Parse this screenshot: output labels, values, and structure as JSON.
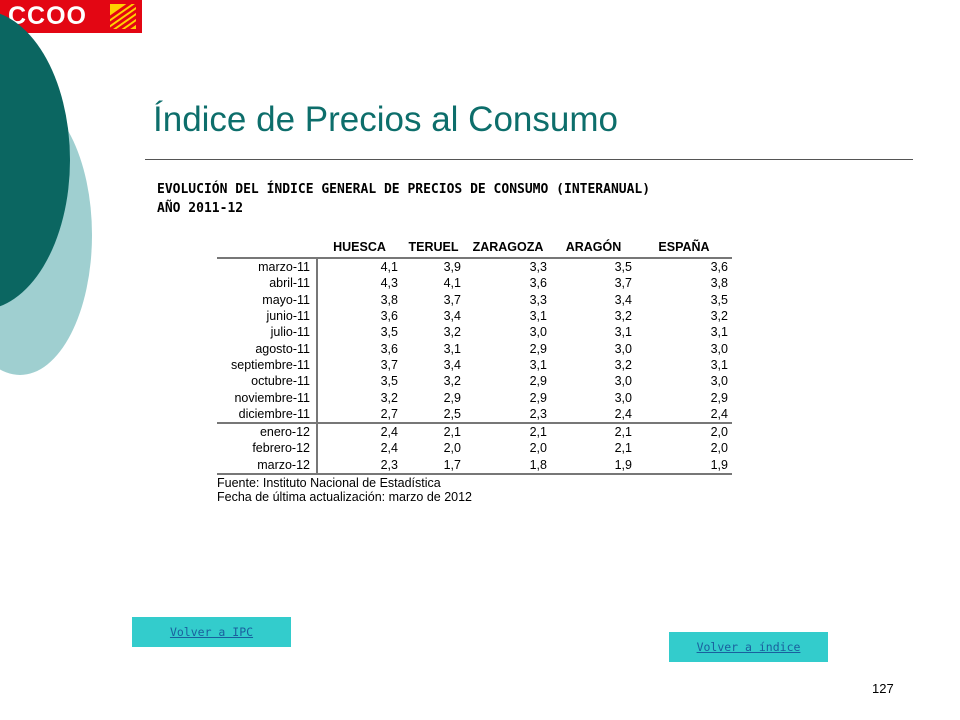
{
  "logo": {
    "text": "CCOO"
  },
  "colors": {
    "accent": "#0d6e6b",
    "button": "#33cccc",
    "logo_red": "#e30613",
    "deco_dark": "#0b6661",
    "deco_light": "#9fcfd0"
  },
  "slide": {
    "title": "Índice de Precios al Consumo",
    "subtitle_line1": "EVOLUCIÓN DEL ÍNDICE GENERAL DE PRECIOS DE CONSUMO (INTERANUAL)",
    "subtitle_line2": "AÑO 2011-12",
    "page_number": "127"
  },
  "table": {
    "headers": [
      "HUESCA",
      "TERUEL",
      "ZARAGOZA",
      "ARAGÓN",
      "ESPAÑA"
    ],
    "rows": [
      {
        "month": "marzo-11",
        "values": [
          "4,1",
          "3,9",
          "3,3",
          "3,5",
          "3,6"
        ]
      },
      {
        "month": "abril-11",
        "values": [
          "4,3",
          "4,1",
          "3,6",
          "3,7",
          "3,8"
        ]
      },
      {
        "month": "mayo-11",
        "values": [
          "3,8",
          "3,7",
          "3,3",
          "3,4",
          "3,5"
        ]
      },
      {
        "month": "junio-11",
        "values": [
          "3,6",
          "3,4",
          "3,1",
          "3,2",
          "3,2"
        ]
      },
      {
        "month": "julio-11",
        "values": [
          "3,5",
          "3,2",
          "3,0",
          "3,1",
          "3,1"
        ]
      },
      {
        "month": "agosto-11",
        "values": [
          "3,6",
          "3,1",
          "2,9",
          "3,0",
          "3,0"
        ]
      },
      {
        "month": "septiembre-11",
        "values": [
          "3,7",
          "3,4",
          "3,1",
          "3,2",
          "3,1"
        ]
      },
      {
        "month": "octubre-11",
        "values": [
          "3,5",
          "3,2",
          "2,9",
          "3,0",
          "3,0"
        ]
      },
      {
        "month": "noviembre-11",
        "values": [
          "3,2",
          "2,9",
          "2,9",
          "3,0",
          "2,9"
        ]
      },
      {
        "month": "diciembre-11",
        "values": [
          "2,7",
          "2,5",
          "2,3",
          "2,4",
          "2,4"
        ]
      },
      {
        "month": "enero-12",
        "values": [
          "2,4",
          "2,1",
          "2,1",
          "2,1",
          "2,0"
        ]
      },
      {
        "month": "febrero-12",
        "values": [
          "2,4",
          "2,0",
          "2,0",
          "2,1",
          "2,0"
        ]
      },
      {
        "month": "marzo-12",
        "values": [
          "2,3",
          "1,7",
          "1,8",
          "1,9",
          "1,9"
        ]
      }
    ],
    "source": "Fuente: Instituto Nacional de Estadística",
    "updated": "Fecha de última actualización: marzo de 2012"
  },
  "buttons": {
    "back_ipc": "Volver a IPC",
    "back_index": "Volver a índice"
  }
}
